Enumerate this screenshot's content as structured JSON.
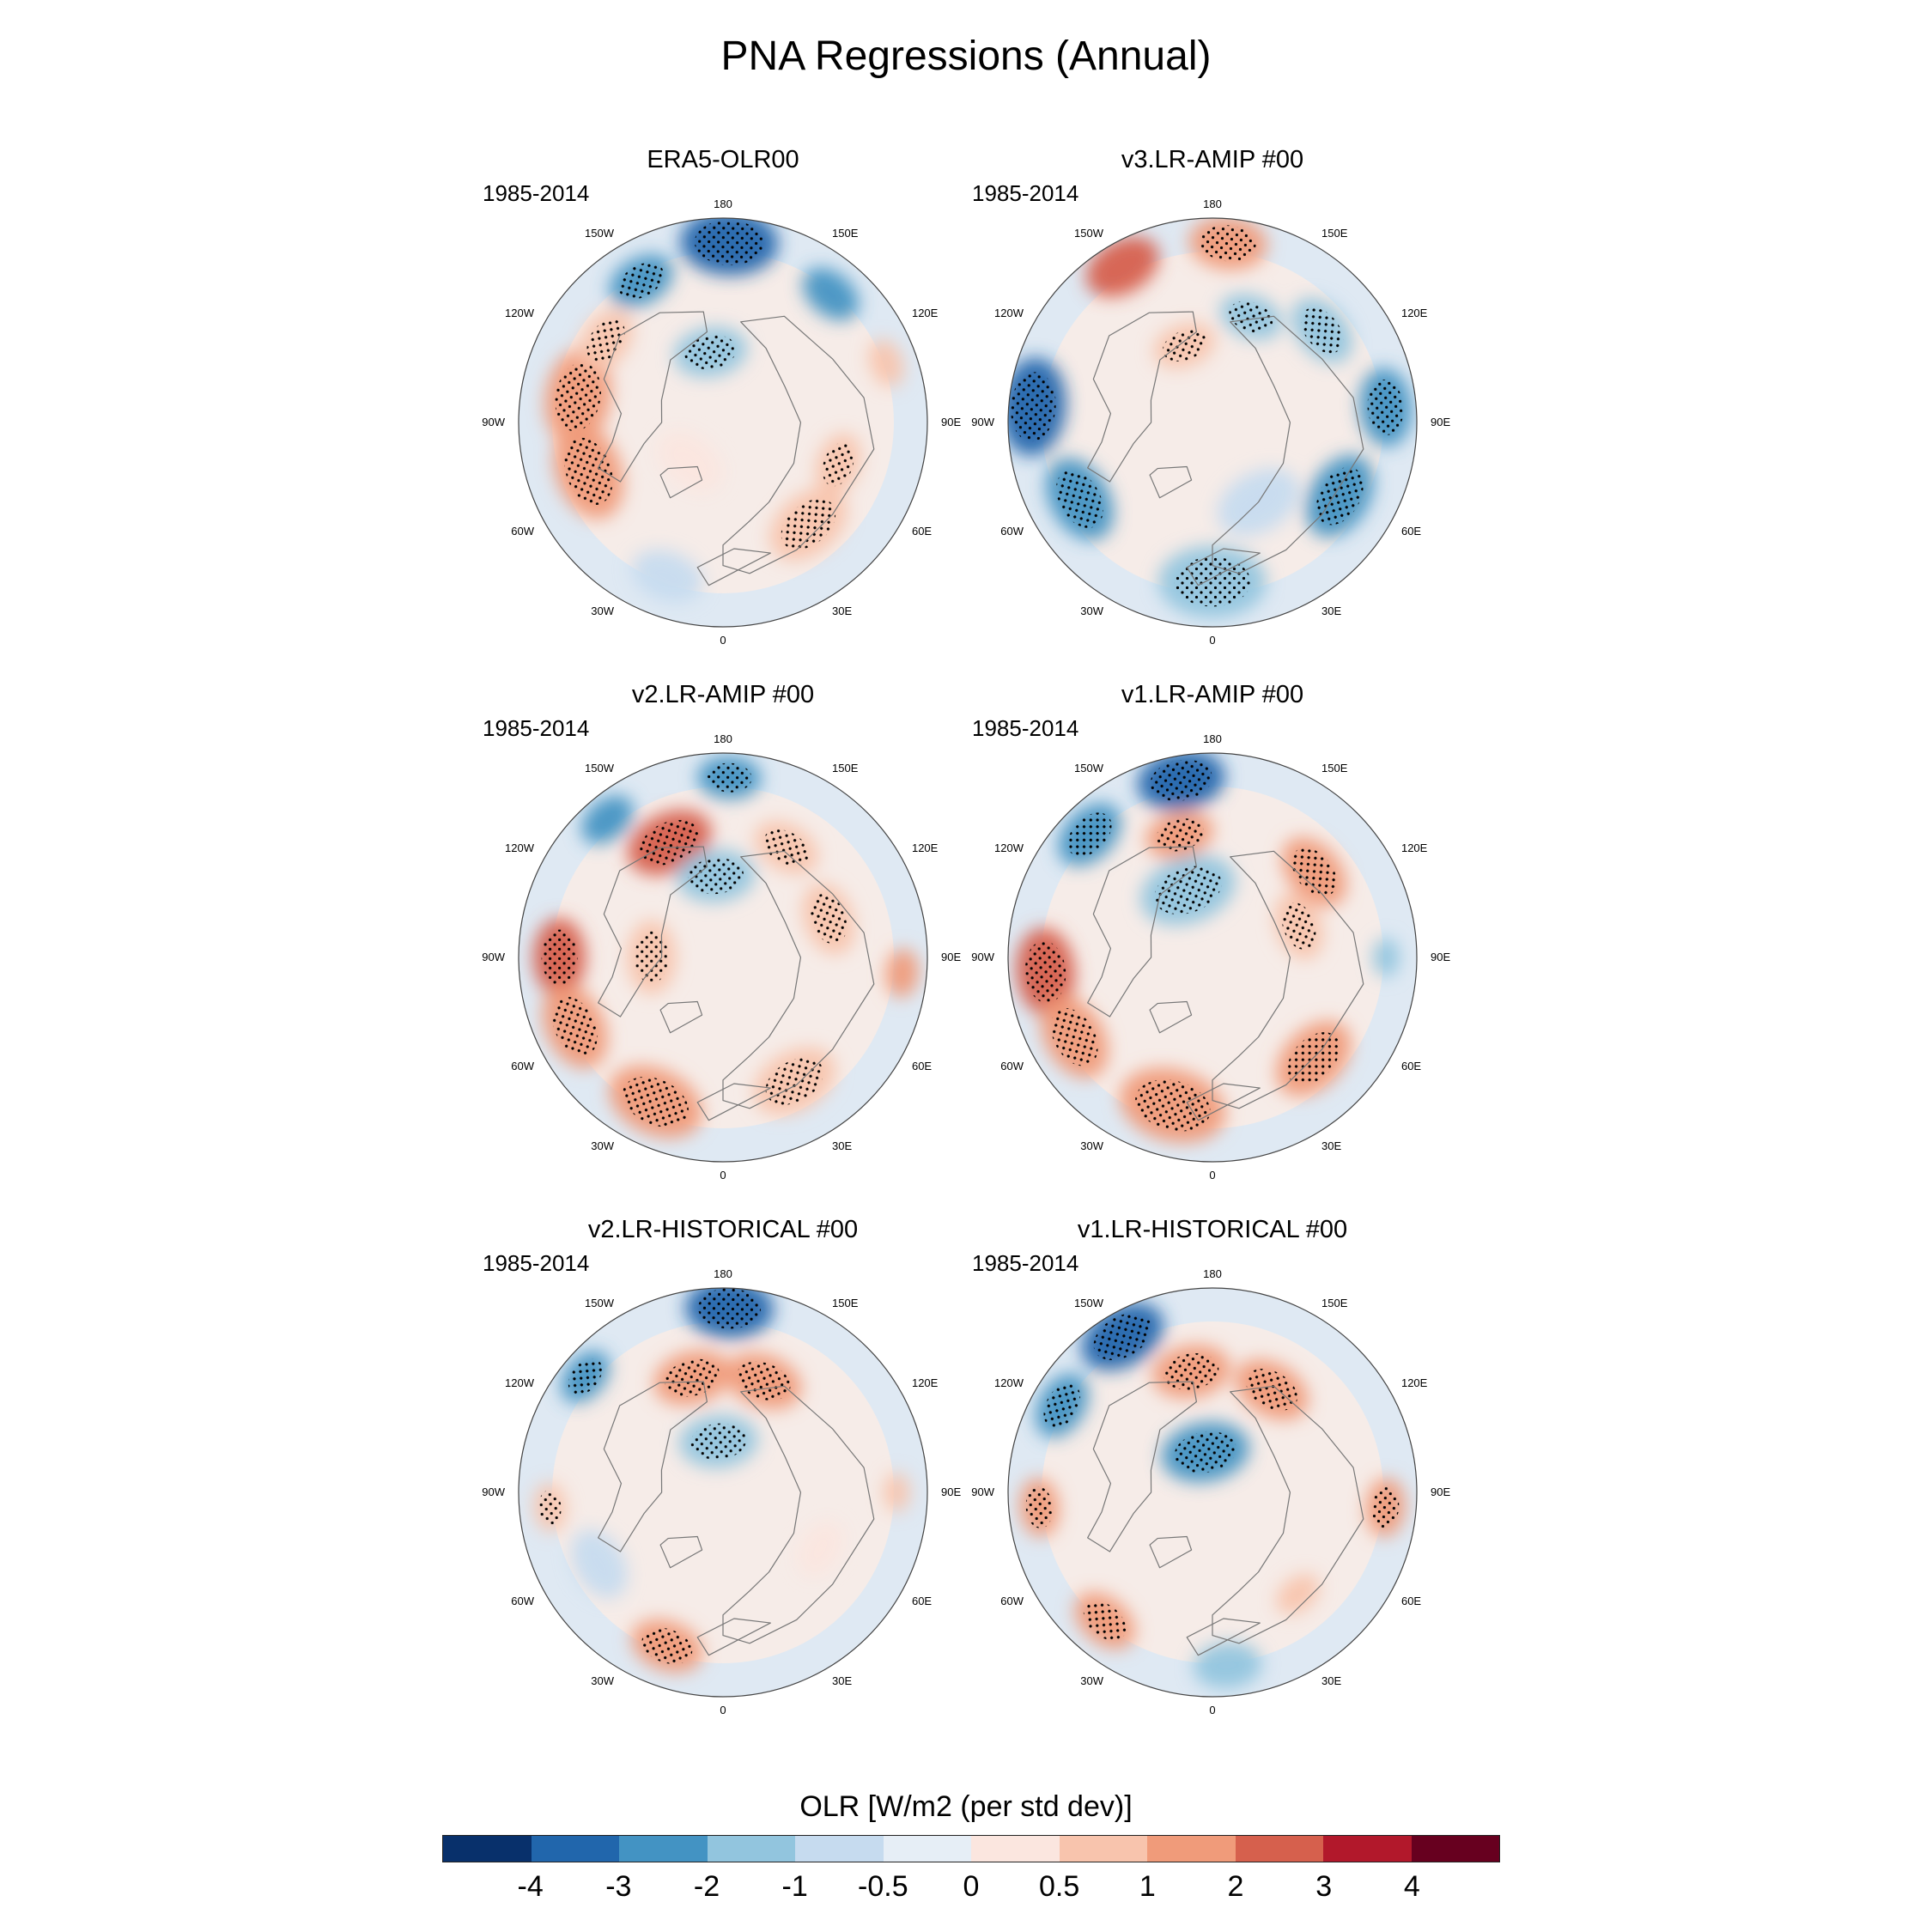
{
  "title": "PNA Regressions (Annual)",
  "colorbar": {
    "label": "OLR [W/m2 (per std dev)]",
    "colors": [
      "#08306b",
      "#2166ac",
      "#4393c3",
      "#92c5de",
      "#c6dbef",
      "#e6eef6",
      "#fbe6df",
      "#f8c4ad",
      "#f09b7a",
      "#d6604d",
      "#b2182b",
      "#67001f"
    ],
    "tick_labels": [
      "-4",
      "-3",
      "-2",
      "-1",
      "-0.5",
      "0",
      "0.5",
      "1",
      "2",
      "3",
      "4"
    ]
  },
  "longitude_labels": [
    "180",
    "150E",
    "120E",
    "90E",
    "60E",
    "30E",
    "0",
    "30W",
    "60W",
    "90W",
    "120W",
    "150W"
  ],
  "panels": [
    {
      "title": "ERA5-OLR00",
      "period": "1985-2014",
      "features": [
        {
          "type": "neg",
          "lon": 178,
          "colat": 0.88,
          "r": 0.2,
          "level": -3,
          "stip": true
        },
        {
          "type": "neg",
          "lon": -150,
          "colat": 0.8,
          "r": 0.14,
          "level": -2,
          "stip": true
        },
        {
          "type": "neg",
          "lon": 140,
          "colat": 0.82,
          "r": 0.13,
          "level": -2,
          "stip": false
        },
        {
          "type": "pos",
          "lon": -100,
          "colat": 0.72,
          "r": 0.2,
          "level": 2,
          "stip": true
        },
        {
          "type": "pos",
          "lon": -70,
          "colat": 0.7,
          "r": 0.2,
          "level": 2,
          "stip": true
        },
        {
          "type": "pos",
          "lon": -125,
          "colat": 0.7,
          "r": 0.14,
          "level": 1,
          "stip": true
        },
        {
          "type": "pos",
          "lon": 40,
          "colat": 0.65,
          "r": 0.18,
          "level": 1,
          "stip": true
        },
        {
          "type": "pos",
          "lon": 70,
          "colat": 0.6,
          "r": 0.13,
          "level": 1,
          "stip": true
        },
        {
          "type": "pos",
          "lon": 110,
          "colat": 0.85,
          "r": 0.1,
          "level": 1,
          "stip": false
        },
        {
          "type": "neg",
          "lon": -170,
          "colat": 0.35,
          "r": 0.15,
          "level": -1,
          "stip": true
        },
        {
          "type": "neg",
          "lon": -20,
          "colat": 0.8,
          "r": 0.15,
          "level": -0.5,
          "stip": false
        },
        {
          "type": "pos",
          "lon": -40,
          "colat": 0.25,
          "r": 0.15,
          "level": 0.5,
          "stip": false
        }
      ]
    },
    {
      "title": "v3.LR-AMIP  #00",
      "period": "1985-2014",
      "features": [
        {
          "type": "pos",
          "lon": 175,
          "colat": 0.88,
          "r": 0.16,
          "level": 2,
          "stip": true
        },
        {
          "type": "pos",
          "lon": -150,
          "colat": 0.88,
          "r": 0.16,
          "level": 3,
          "stip": false
        },
        {
          "type": "neg",
          "lon": -95,
          "colat": 0.88,
          "r": 0.2,
          "level": -3,
          "stip": true
        },
        {
          "type": "neg",
          "lon": -60,
          "colat": 0.75,
          "r": 0.18,
          "level": -2,
          "stip": true
        },
        {
          "type": "neg",
          "lon": 0,
          "colat": 0.78,
          "r": 0.22,
          "level": -1,
          "stip": true
        },
        {
          "type": "neg",
          "lon": 60,
          "colat": 0.72,
          "r": 0.18,
          "level": -2,
          "stip": true
        },
        {
          "type": "neg",
          "lon": 95,
          "colat": 0.85,
          "r": 0.16,
          "level": -2,
          "stip": true
        },
        {
          "type": "neg",
          "lon": 130,
          "colat": 0.7,
          "r": 0.15,
          "level": -1,
          "stip": true
        },
        {
          "type": "neg",
          "lon": 160,
          "colat": 0.55,
          "r": 0.13,
          "level": -1,
          "stip": true
        },
        {
          "type": "pos",
          "lon": -160,
          "colat": 0.4,
          "r": 0.13,
          "level": 1,
          "stip": true
        },
        {
          "type": "neg",
          "lon": 30,
          "colat": 0.45,
          "r": 0.18,
          "level": -0.5,
          "stip": false
        }
      ]
    },
    {
      "title": "v2.LR-AMIP  #00",
      "period": "1985-2014",
      "features": [
        {
          "type": "neg",
          "lon": 178,
          "colat": 0.88,
          "r": 0.13,
          "level": -2,
          "stip": true
        },
        {
          "type": "neg",
          "lon": -140,
          "colat": 0.88,
          "r": 0.12,
          "level": -2,
          "stip": false
        },
        {
          "type": "pos",
          "lon": -155,
          "colat": 0.62,
          "r": 0.18,
          "level": 3,
          "stip": true
        },
        {
          "type": "pos",
          "lon": 150,
          "colat": 0.62,
          "r": 0.14,
          "level": 1,
          "stip": true
        },
        {
          "type": "neg",
          "lon": -175,
          "colat": 0.4,
          "r": 0.16,
          "level": -1,
          "stip": true
        },
        {
          "type": "pos",
          "lon": -90,
          "colat": 0.8,
          "r": 0.16,
          "level": 3,
          "stip": true
        },
        {
          "type": "pos",
          "lon": -65,
          "colat": 0.8,
          "r": 0.18,
          "level": 2,
          "stip": true
        },
        {
          "type": "pos",
          "lon": -25,
          "colat": 0.78,
          "r": 0.2,
          "level": 2,
          "stip": true
        },
        {
          "type": "pos",
          "lon": 30,
          "colat": 0.7,
          "r": 0.18,
          "level": 1,
          "stip": true
        },
        {
          "type": "pos",
          "lon": 110,
          "colat": 0.55,
          "r": 0.15,
          "level": 1,
          "stip": true
        },
        {
          "type": "pos",
          "lon": -90,
          "colat": 0.35,
          "r": 0.15,
          "level": 1,
          "stip": true
        },
        {
          "type": "pos",
          "lon": 85,
          "colat": 0.88,
          "r": 0.1,
          "level": 2,
          "stip": false
        }
      ]
    },
    {
      "title": "v1.LR-AMIP  #00",
      "period": "1985-2014",
      "features": [
        {
          "type": "neg",
          "lon": -170,
          "colat": 0.88,
          "r": 0.18,
          "level": -3,
          "stip": true
        },
        {
          "type": "neg",
          "lon": -135,
          "colat": 0.85,
          "r": 0.15,
          "level": -2,
          "stip": true
        },
        {
          "type": "pos",
          "lon": -165,
          "colat": 0.62,
          "r": 0.14,
          "level": 2,
          "stip": true
        },
        {
          "type": "pos",
          "lon": 130,
          "colat": 0.65,
          "r": 0.16,
          "level": 2,
          "stip": true
        },
        {
          "type": "neg",
          "lon": -160,
          "colat": 0.35,
          "r": 0.2,
          "level": -1,
          "stip": true
        },
        {
          "type": "pos",
          "lon": -85,
          "colat": 0.82,
          "r": 0.18,
          "level": 3,
          "stip": true
        },
        {
          "type": "pos",
          "lon": -60,
          "colat": 0.78,
          "r": 0.18,
          "level": 2,
          "stip": true
        },
        {
          "type": "pos",
          "lon": -15,
          "colat": 0.75,
          "r": 0.22,
          "level": 2,
          "stip": true
        },
        {
          "type": "pos",
          "lon": 45,
          "colat": 0.7,
          "r": 0.18,
          "level": 2,
          "stip": true
        },
        {
          "type": "pos",
          "lon": 110,
          "colat": 0.45,
          "r": 0.14,
          "level": 1,
          "stip": true
        },
        {
          "type": "neg",
          "lon": 90,
          "colat": 0.85,
          "r": 0.08,
          "level": -1,
          "stip": false
        }
      ]
    },
    {
      "title": "v2.LR-HISTORICAL  #00",
      "period": "1985-2014",
      "features": [
        {
          "type": "neg",
          "lon": 178,
          "colat": 0.9,
          "r": 0.18,
          "level": -3,
          "stip": true
        },
        {
          "type": "neg",
          "lon": -130,
          "colat": 0.88,
          "r": 0.12,
          "level": -2,
          "stip": true
        },
        {
          "type": "pos",
          "lon": -165,
          "colat": 0.58,
          "r": 0.16,
          "level": 2,
          "stip": true
        },
        {
          "type": "pos",
          "lon": 160,
          "colat": 0.58,
          "r": 0.16,
          "level": 2,
          "stip": true
        },
        {
          "type": "neg",
          "lon": -175,
          "colat": 0.25,
          "r": 0.16,
          "level": -1,
          "stip": true
        },
        {
          "type": "pos",
          "lon": -20,
          "colat": 0.8,
          "r": 0.15,
          "level": 2,
          "stip": true
        },
        {
          "type": "pos",
          "lon": -85,
          "colat": 0.85,
          "r": 0.1,
          "level": 1,
          "stip": true
        },
        {
          "type": "pos",
          "lon": 90,
          "colat": 0.85,
          "r": 0.08,
          "level": 1,
          "stip": false
        },
        {
          "type": "pos",
          "lon": 60,
          "colat": 0.55,
          "r": 0.12,
          "level": 0.5,
          "stip": false
        },
        {
          "type": "neg",
          "lon": -60,
          "colat": 0.7,
          "r": 0.15,
          "level": -0.5,
          "stip": false
        }
      ]
    },
    {
      "title": "v1.LR-HISTORICAL  #00",
      "period": "1985-2014",
      "features": [
        {
          "type": "neg",
          "lon": -150,
          "colat": 0.88,
          "r": 0.18,
          "level": -3,
          "stip": true
        },
        {
          "type": "neg",
          "lon": -120,
          "colat": 0.85,
          "r": 0.14,
          "level": -2,
          "stip": true
        },
        {
          "type": "pos",
          "lon": -170,
          "colat": 0.6,
          "r": 0.16,
          "level": 2,
          "stip": true
        },
        {
          "type": "pos",
          "lon": 150,
          "colat": 0.58,
          "r": 0.16,
          "level": 2,
          "stip": true
        },
        {
          "type": "neg",
          "lon": -170,
          "colat": 0.2,
          "r": 0.18,
          "level": -2,
          "stip": true
        },
        {
          "type": "pos",
          "lon": -85,
          "colat": 0.85,
          "r": 0.12,
          "level": 2,
          "stip": true
        },
        {
          "type": "pos",
          "lon": -40,
          "colat": 0.82,
          "r": 0.14,
          "level": 2,
          "stip": true
        },
        {
          "type": "pos",
          "lon": 85,
          "colat": 0.85,
          "r": 0.12,
          "level": 2,
          "stip": true
        },
        {
          "type": "neg",
          "lon": 5,
          "colat": 0.85,
          "r": 0.14,
          "level": -1,
          "stip": false
        },
        {
          "type": "pos",
          "lon": 40,
          "colat": 0.65,
          "r": 0.1,
          "level": 1,
          "stip": false
        }
      ]
    }
  ]
}
